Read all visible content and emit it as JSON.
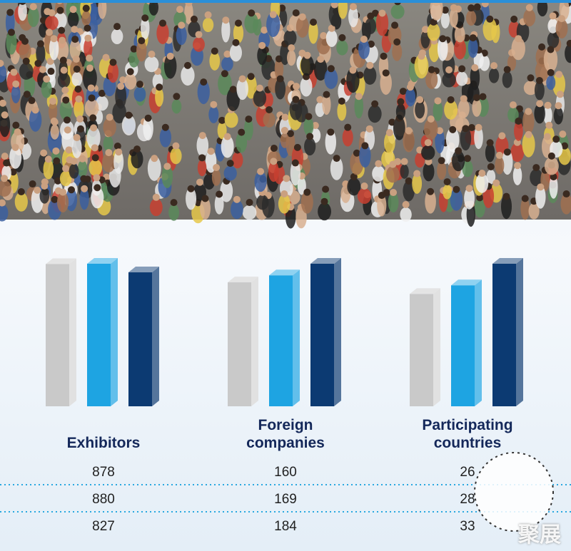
{
  "chart_data": [
    {
      "type": "bar",
      "title": "Exhibitors",
      "values": [
        878,
        880,
        827
      ],
      "colors": [
        "#c9c9c9",
        "#1ea4e2",
        "#0c3a72"
      ]
    },
    {
      "type": "bar",
      "title": "Foreign companies",
      "values": [
        160,
        169,
        184
      ],
      "colors": [
        "#c9c9c9",
        "#1ea4e2",
        "#0c3a72"
      ]
    },
    {
      "type": "bar",
      "title": "Participating countries",
      "values": [
        26,
        28,
        33
      ],
      "colors": [
        "#c9c9c9",
        "#1ea4e2",
        "#0c3a72"
      ]
    }
  ],
  "watermark": "聚展"
}
